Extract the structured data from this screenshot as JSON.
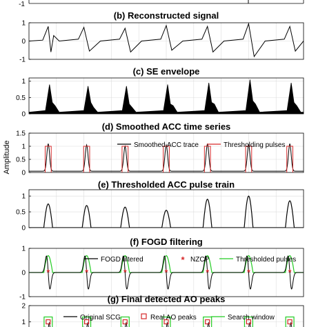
{
  "figure": {
    "ylabel": "Amplitude",
    "panel_a_ticks": [
      "-1"
    ]
  },
  "chart_data": [
    {
      "id": "b",
      "type": "line",
      "title": "(b) Reconstructed signal",
      "ylim": [
        -1,
        1
      ],
      "yticks": [
        "1",
        "0",
        "-1"
      ],
      "grid": true,
      "x": [
        0.0,
        0.5,
        0.7,
        0.8,
        0.9,
        1.1,
        1.8,
        2.0,
        2.2,
        2.6,
        3.3,
        3.5,
        3.7,
        4.1,
        4.8,
        5.0,
        5.2,
        5.6,
        6.3,
        6.5,
        6.7,
        7.1,
        7.8,
        8.0,
        8.2,
        8.6,
        9.3,
        9.5,
        9.7,
        10.0
      ],
      "values": [
        0.0,
        0.05,
        0.8,
        -0.6,
        0.3,
        0.0,
        0.1,
        0.75,
        -0.55,
        0.0,
        0.1,
        0.7,
        -0.6,
        0.0,
        0.1,
        0.85,
        -0.5,
        0.0,
        0.1,
        0.8,
        -0.6,
        0.0,
        0.1,
        0.95,
        -0.85,
        0.0,
        0.1,
        0.8,
        -0.55,
        0.0
      ]
    },
    {
      "id": "c",
      "type": "area",
      "title": "(c) SE envelope",
      "ylim": [
        0,
        1.1
      ],
      "yticks": [
        "1",
        "0.5",
        "0"
      ],
      "grid": true,
      "x": [
        0.0,
        0.6,
        0.75,
        0.85,
        0.95,
        1.1,
        2.0,
        2.15,
        2.25,
        2.35,
        2.5,
        3.4,
        3.55,
        3.65,
        3.75,
        3.9,
        4.9,
        5.05,
        5.15,
        5.25,
        5.4,
        6.4,
        6.55,
        6.65,
        6.75,
        6.9,
        7.9,
        8.05,
        8.15,
        8.25,
        8.4,
        9.4,
        9.55,
        9.65,
        9.75,
        9.9,
        10.0
      ],
      "values": [
        0.05,
        0.1,
        0.9,
        0.35,
        0.25,
        0.05,
        0.1,
        0.85,
        0.35,
        0.2,
        0.05,
        0.1,
        0.85,
        0.3,
        0.2,
        0.05,
        0.1,
        0.9,
        0.3,
        0.25,
        0.05,
        0.1,
        0.95,
        0.35,
        0.3,
        0.05,
        0.1,
        1.05,
        0.4,
        0.3,
        0.05,
        0.1,
        0.95,
        0.35,
        0.25,
        0.05,
        0.05
      ]
    },
    {
      "id": "d",
      "type": "line",
      "title": "(d) Smoothed ACC time series",
      "ylim": [
        0,
        1.5
      ],
      "yticks": [
        "1.5",
        "1",
        "0.5",
        "0"
      ],
      "grid": true,
      "legend": [
        "Smoothed ACC trace",
        "Thresholding pulses"
      ],
      "legend_position": "top-right",
      "series_colors": [
        "#000000",
        "#d62728"
      ],
      "peaks_x": [
        0.7,
        2.1,
        3.5,
        5.0,
        6.5,
        8.0,
        9.5
      ],
      "peak_heights": [
        1.05,
        1.0,
        0.95,
        1.0,
        1.05,
        1.0,
        1.05
      ],
      "pulse_width": 0.22,
      "pulse_height": 1.0
    },
    {
      "id": "e",
      "type": "line",
      "title": "(e) Thresholded ACC pulse train",
      "ylim": [
        0,
        1.2
      ],
      "yticks": [
        "1",
        "0.5",
        "0"
      ],
      "grid": true,
      "peaks_x": [
        0.7,
        2.1,
        3.5,
        5.0,
        6.5,
        8.0,
        9.5
      ],
      "peak_heights": [
        0.75,
        0.7,
        0.65,
        0.55,
        0.9,
        1.0,
        0.85
      ],
      "pulse_width": 0.32
    },
    {
      "id": "f",
      "type": "line",
      "title": "(f) FOGD filtering",
      "ylim": [
        -1,
        1
      ],
      "yticks": [
        "1",
        "0",
        "-1"
      ],
      "grid": true,
      "legend": [
        "FOGD filtered",
        "NZCP",
        "Thresholded pulses"
      ],
      "legend_position": "top",
      "series_colors": [
        "#000000",
        "#d62728",
        "#22cc22"
      ],
      "nzcp_x": [
        0.7,
        2.1,
        3.5,
        5.0,
        6.5,
        8.0,
        9.5
      ],
      "pulse_height": 0.7,
      "pulse_width": 0.32
    },
    {
      "id": "g",
      "type": "line",
      "title": "(g) Final detected AO peaks",
      "ylim": [
        0,
        2
      ],
      "yticks": [
        "2",
        "1"
      ],
      "grid": true,
      "legend": [
        "Original SCG",
        "Real AO peaks",
        "Search window"
      ],
      "legend_position": "top",
      "series_colors": [
        "#000000",
        "#d62728",
        "#22cc22"
      ],
      "ao_x": [
        0.7,
        2.1,
        3.5,
        5.0,
        6.5,
        8.0,
        9.5
      ]
    }
  ]
}
